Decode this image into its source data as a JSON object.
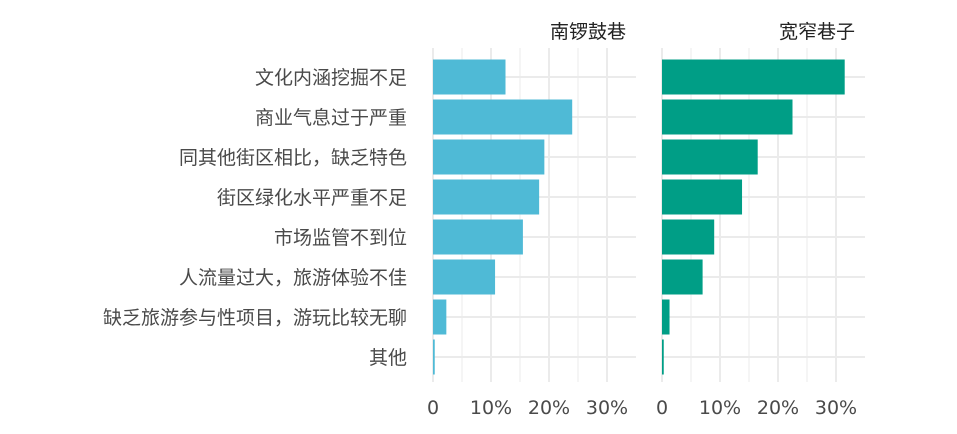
{
  "chart_data": {
    "type": "bar",
    "orientation": "horizontal",
    "categories": [
      "文化内涵挖掘不足",
      "商业气息过于严重",
      "同其他街区相比，缺乏特色",
      "街区绿化水平严重不足",
      "市场监管不到位",
      "人流量过大，旅游体验不佳",
      "缺乏旅游参与性项目，游玩比较无聊",
      "其他"
    ],
    "panels": [
      {
        "title": "南锣鼓巷",
        "color": "#4fbad6",
        "values": [
          12.5,
          24.0,
          19.2,
          18.3,
          15.5,
          10.7,
          2.3,
          0.3
        ]
      },
      {
        "title": "宽窄巷子",
        "color": "#009e86",
        "values": [
          31.5,
          22.5,
          16.5,
          13.8,
          9.0,
          7.0,
          1.3,
          0.3
        ]
      }
    ],
    "xlim": [
      0,
      35
    ],
    "xticks": [
      0,
      10,
      20,
      30
    ],
    "xtick_labels": [
      "0",
      "10%",
      "20%",
      "30%"
    ],
    "grid": true,
    "panel_background": "#ffffff",
    "grid_color": "#ebebeb"
  }
}
